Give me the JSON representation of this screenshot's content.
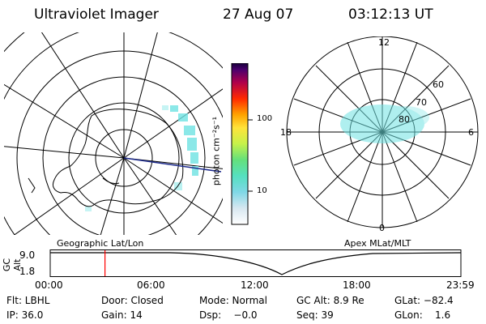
{
  "header": {
    "title": "Ultraviolet Imager",
    "date": "27 Aug 07",
    "time": "03:12:13 UT"
  },
  "left_panel": {
    "caption": "Geographic Lat/Lon"
  },
  "right_panel": {
    "caption": "Apex MLat/MLT",
    "mlt_labels": {
      "top": "12",
      "right": "6",
      "bottom": "0",
      "left": "18"
    },
    "lat_labels": [
      "60",
      "70",
      "80"
    ]
  },
  "colorbar": {
    "unit_label": "photon cm⁻²s⁻¹",
    "ticks": [
      "100",
      "10"
    ]
  },
  "timeline": {
    "axis_label": "GC Alt",
    "y_ticks": [
      "9.0",
      "1.8"
    ],
    "x_ticks": [
      "00:00",
      "06:00",
      "12:00",
      "18:00",
      "23:59"
    ],
    "current_time_marker_hours": 3.2
  },
  "footer": {
    "row1": [
      {
        "key": "flt",
        "text": "Flt: LBHL"
      },
      {
        "key": "door",
        "text": "Door: Closed"
      },
      {
        "key": "mode",
        "text": "Mode: Normal"
      },
      {
        "key": "gcalt",
        "text": "GC Alt: 8.9 Re"
      },
      {
        "key": "glat",
        "text": "GLat: −82.4"
      }
    ],
    "row2": [
      {
        "key": "ip",
        "text": "IP: 36.0"
      },
      {
        "key": "gain",
        "text": "Gain: 14"
      },
      {
        "key": "dsp",
        "text": "Dsp:    −0.0"
      },
      {
        "key": "seq",
        "text": "Seq: 39"
      },
      {
        "key": "glon",
        "text": "GLon:    1.6"
      }
    ]
  },
  "colors": {
    "foreground": "#000000",
    "nadir_line": "#1c2a8c",
    "marker": "#ff0000",
    "aurora": "#6fe3e3"
  }
}
